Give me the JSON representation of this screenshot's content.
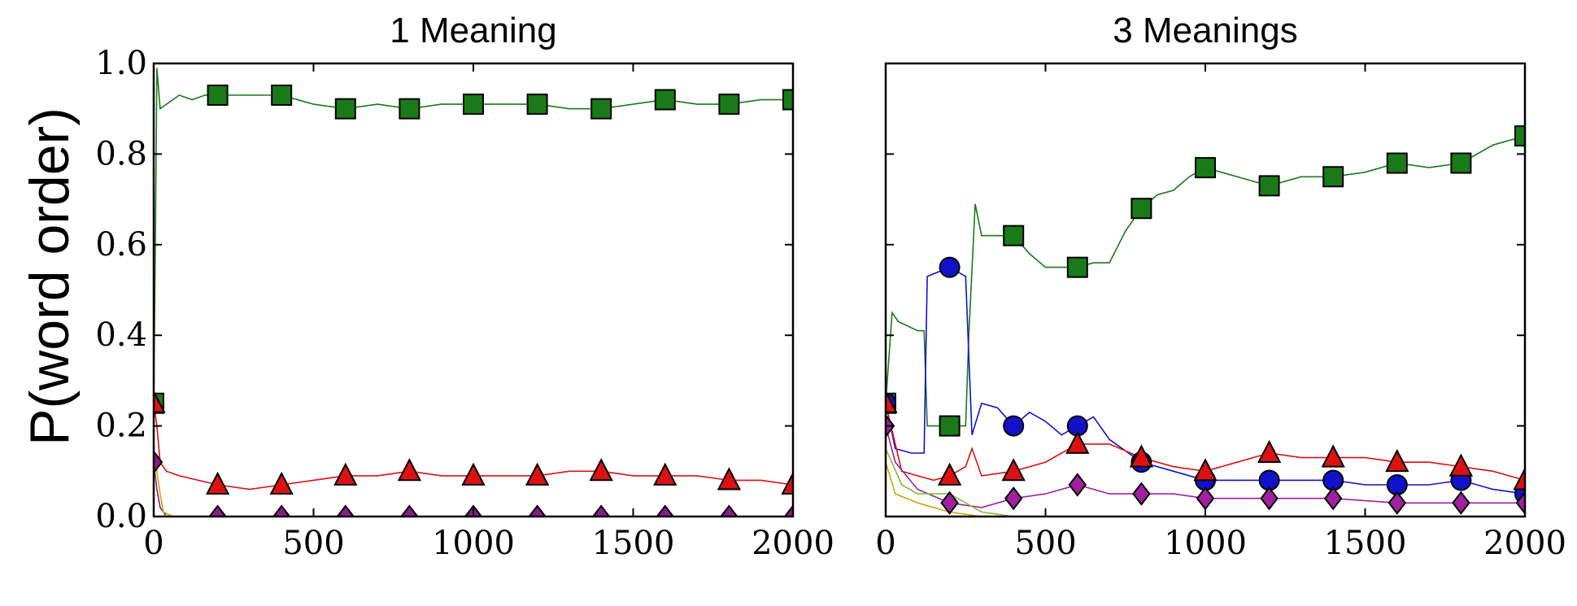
{
  "chart_data": [
    {
      "type": "line",
      "title": "1 Meaning",
      "ylabel": "P(word order)",
      "xlabel": "",
      "xlim": [
        0,
        2000
      ],
      "ylim": [
        0,
        1
      ],
      "xticks": [
        "0",
        "500",
        "1000",
        "1500",
        "2000"
      ],
      "yticks": [
        "0.0",
        "0.2",
        "0.4",
        "0.6",
        "0.8",
        "1.0"
      ],
      "series": [
        {
          "color": "#1a7a1a",
          "marker": "square",
          "x": [
            0,
            5,
            10,
            20,
            40,
            80,
            120,
            160,
            200,
            300,
            400,
            500,
            600,
            700,
            800,
            900,
            1000,
            1100,
            1200,
            1300,
            1400,
            1500,
            1600,
            1700,
            1800,
            1900,
            2000
          ],
          "y": [
            0.25,
            0.6,
            0.99,
            0.9,
            0.91,
            0.93,
            0.92,
            0.93,
            0.93,
            0.93,
            0.93,
            0.91,
            0.9,
            0.91,
            0.9,
            0.91,
            0.91,
            0.91,
            0.91,
            0.9,
            0.9,
            0.91,
            0.92,
            0.91,
            0.91,
            0.92,
            0.92
          ]
        },
        {
          "color": "#dd1111",
          "marker": "triangle",
          "x": [
            0,
            10,
            20,
            40,
            80,
            200,
            300,
            400,
            500,
            600,
            700,
            800,
            900,
            1000,
            1100,
            1200,
            1300,
            1400,
            1500,
            1600,
            1700,
            1800,
            1900,
            2000
          ],
          "y": [
            0.25,
            0.2,
            0.12,
            0.1,
            0.09,
            0.07,
            0.06,
            0.07,
            0.08,
            0.09,
            0.09,
            0.1,
            0.09,
            0.09,
            0.09,
            0.09,
            0.1,
            0.1,
            0.09,
            0.09,
            0.09,
            0.08,
            0.08,
            0.07
          ]
        },
        {
          "color": "#8b1a8b",
          "marker": "diamond",
          "x": [
            0,
            10,
            20,
            40,
            200,
            400,
            600,
            800,
            1000,
            1200,
            1400,
            1600,
            1800,
            2000
          ],
          "y": [
            0.12,
            0.06,
            0.02,
            0.0,
            0.0,
            0.0,
            0.0,
            0.0,
            0.0,
            0.0,
            0.0,
            0.0,
            0.0,
            0.0
          ]
        },
        {
          "color": "#c8a800",
          "marker": "none",
          "x": [
            0,
            10,
            20,
            30,
            60,
            2000
          ],
          "y": [
            0.15,
            0.1,
            0.05,
            0.01,
            0.0,
            0.0
          ]
        }
      ]
    },
    {
      "type": "line",
      "title": "3 Meanings",
      "xlabel": "",
      "ylabel": "",
      "xlim": [
        0,
        2000
      ],
      "ylim": [
        0,
        1
      ],
      "xticks": [
        "0",
        "500",
        "1000",
        "1500",
        "2000"
      ],
      "series": [
        {
          "color": "#1a7a1a",
          "marker": "square",
          "x": [
            0,
            20,
            40,
            100,
            120,
            130,
            200,
            250,
            260,
            280,
            300,
            350,
            400,
            450,
            500,
            550,
            600,
            650,
            700,
            750,
            800,
            850,
            900,
            950,
            1000,
            1100,
            1200,
            1300,
            1400,
            1500,
            1600,
            1700,
            1800,
            1900,
            2000
          ],
          "y": [
            0.25,
            0.45,
            0.43,
            0.41,
            0.41,
            0.2,
            0.2,
            0.2,
            0.4,
            0.69,
            0.62,
            0.62,
            0.62,
            0.58,
            0.55,
            0.55,
            0.55,
            0.56,
            0.56,
            0.63,
            0.68,
            0.71,
            0.72,
            0.75,
            0.77,
            0.75,
            0.73,
            0.75,
            0.75,
            0.76,
            0.78,
            0.77,
            0.78,
            0.82,
            0.84
          ]
        },
        {
          "color": "#1111cc",
          "marker": "circle",
          "x": [
            0,
            30,
            80,
            120,
            130,
            200,
            250,
            270,
            300,
            350,
            400,
            450,
            500,
            550,
            600,
            650,
            700,
            800,
            900,
            1000,
            1100,
            1200,
            1300,
            1400,
            1500,
            1600,
            1700,
            1800,
            1900,
            2000
          ],
          "y": [
            0.25,
            0.15,
            0.14,
            0.14,
            0.53,
            0.55,
            0.53,
            0.18,
            0.25,
            0.24,
            0.2,
            0.23,
            0.21,
            0.18,
            0.2,
            0.22,
            0.17,
            0.12,
            0.1,
            0.08,
            0.08,
            0.08,
            0.08,
            0.08,
            0.07,
            0.07,
            0.07,
            0.08,
            0.06,
            0.05
          ]
        },
        {
          "color": "#dd1111",
          "marker": "triangle",
          "x": [
            0,
            50,
            100,
            150,
            200,
            250,
            270,
            300,
            400,
            500,
            600,
            700,
            800,
            900,
            1000,
            1100,
            1200,
            1300,
            1400,
            1500,
            1600,
            1700,
            1800,
            1900,
            2000
          ],
          "y": [
            0.25,
            0.1,
            0.09,
            0.08,
            0.09,
            0.11,
            0.15,
            0.09,
            0.1,
            0.12,
            0.16,
            0.16,
            0.13,
            0.11,
            0.1,
            0.12,
            0.14,
            0.13,
            0.13,
            0.13,
            0.12,
            0.12,
            0.11,
            0.1,
            0.08
          ]
        },
        {
          "color": "#a020a0",
          "marker": "diamond",
          "x": [
            0,
            30,
            100,
            200,
            300,
            400,
            500,
            600,
            700,
            800,
            900,
            1000,
            1200,
            1400,
            1600,
            1800,
            2000
          ],
          "y": [
            0.2,
            0.12,
            0.06,
            0.03,
            0.02,
            0.04,
            0.05,
            0.07,
            0.05,
            0.05,
            0.05,
            0.04,
            0.04,
            0.04,
            0.03,
            0.03,
            0.03
          ]
        },
        {
          "color": "#88bb33",
          "marker": "none",
          "x": [
            0,
            50,
            100,
            200,
            300,
            400,
            600,
            800,
            1000,
            1200,
            1400,
            1600,
            1800,
            2000
          ],
          "y": [
            0.15,
            0.07,
            0.05,
            0.05,
            0.01,
            0.0,
            0.0,
            0.0,
            0.0,
            0.0,
            0.0,
            0.0,
            0.0,
            0.0
          ]
        },
        {
          "color": "#c8a800",
          "marker": "none",
          "x": [
            0,
            30,
            100,
            200,
            300,
            400,
            2000
          ],
          "y": [
            0.12,
            0.05,
            0.03,
            0.01,
            0.0,
            0.0,
            0.0
          ]
        }
      ]
    }
  ]
}
